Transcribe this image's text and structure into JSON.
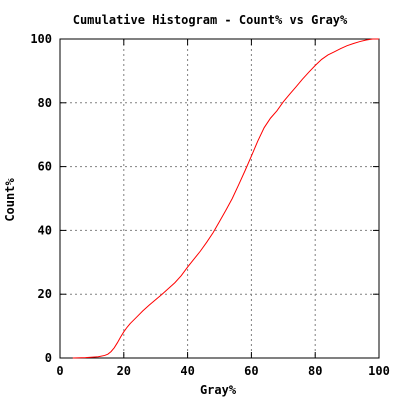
{
  "chart_data": {
    "type": "line",
    "title": "Cumulative Histogram - Count% vs Gray%",
    "xlabel": "Gray%",
    "ylabel": "Count%",
    "xlim": [
      0,
      100
    ],
    "ylim": [
      0,
      100
    ],
    "x_ticks": [
      0,
      20,
      40,
      60,
      80,
      100
    ],
    "y_ticks": [
      0,
      20,
      40,
      60,
      80,
      100
    ],
    "grid": true,
    "series": [
      {
        "color": "#ff0000",
        "x": [
          4,
          8,
          12,
          14,
          15,
          16,
          17,
          18,
          19,
          20,
          21,
          22,
          24,
          26,
          28,
          30,
          32,
          34,
          36,
          38,
          40,
          42,
          44,
          46,
          48,
          50,
          52,
          54,
          56,
          58,
          60,
          62,
          64,
          66,
          68,
          70,
          72,
          74,
          76,
          78,
          80,
          82,
          84,
          86,
          88,
          90,
          92,
          94,
          96,
          98,
          100
        ],
        "y": [
          0,
          0.1,
          0.4,
          0.8,
          1.2,
          2.0,
          3.2,
          4.8,
          6.6,
          8.2,
          9.6,
          10.8,
          12.8,
          14.8,
          16.6,
          18.3,
          20.0,
          21.8,
          23.6,
          25.8,
          28.5,
          31.0,
          33.5,
          36.3,
          39.3,
          42.8,
          46.3,
          50.0,
          54.3,
          58.7,
          63.3,
          68.0,
          72.2,
          75.2,
          77.5,
          80.3,
          82.7,
          85.0,
          87.4,
          89.6,
          91.7,
          93.6,
          95.0,
          96.0,
          97.0,
          97.9,
          98.6,
          99.2,
          99.7,
          100.0,
          100.0
        ]
      }
    ]
  }
}
